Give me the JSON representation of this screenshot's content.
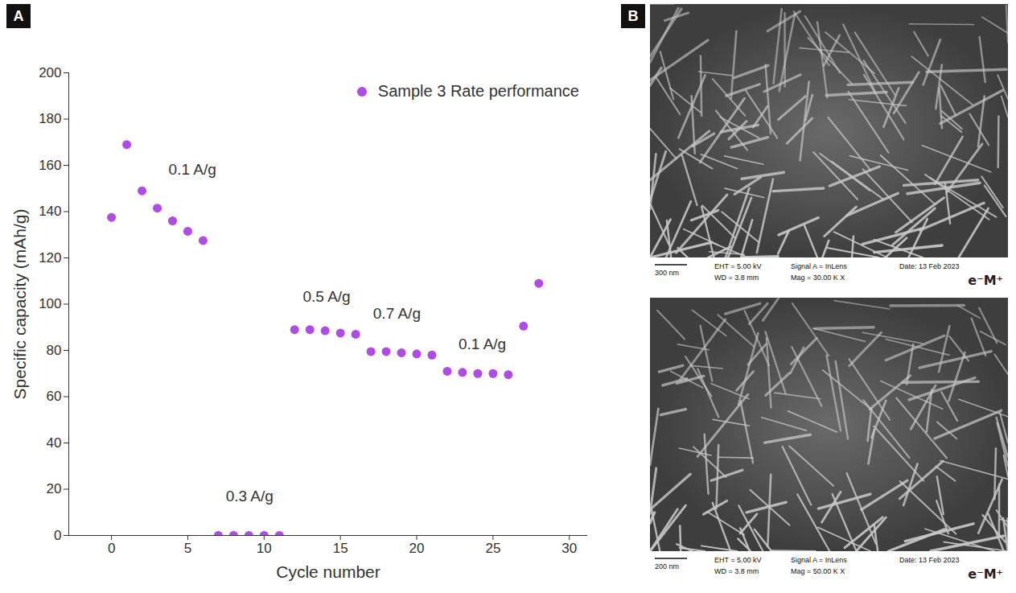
{
  "chart_data": {
    "type": "scatter",
    "panel_label": "A",
    "xlabel": "Cycle number",
    "ylabel": "Specific capacity (mAh/g)",
    "x": [
      0,
      1,
      2,
      3,
      4,
      5,
      6,
      7,
      8,
      9,
      10,
      11,
      12,
      13,
      14,
      15,
      16,
      17,
      18,
      19,
      20,
      21,
      22,
      23,
      24,
      25,
      26,
      27,
      28
    ],
    "series": [
      {
        "name": "Sample 3 Rate performance",
        "color": "#b04be6",
        "marker": "circle",
        "values": [
          137.5,
          169,
          149,
          141.5,
          136,
          131.5,
          127.5,
          0,
          0,
          0,
          0,
          0,
          89,
          89,
          88.5,
          87.5,
          87,
          79.5,
          79.5,
          79,
          78.5,
          78,
          71,
          70.5,
          70,
          70,
          69.5,
          90.5,
          109
        ]
      }
    ],
    "xlim": [
      -2.8,
      31.2
    ],
    "xticks": [
      0,
      5,
      10,
      15,
      20,
      25,
      30
    ],
    "ylim": [
      0,
      200
    ],
    "yticks": [
      0,
      20,
      40,
      60,
      80,
      100,
      120,
      140,
      160,
      180,
      200
    ],
    "legend": "upper right",
    "annotations": [
      {
        "text": "0.1 A/g",
        "x": 5.3,
        "y": 158
      },
      {
        "text": "0.3 A/g",
        "x": 9.05,
        "y": 17
      },
      {
        "text": "0.5 A/g",
        "x": 14.1,
        "y": 103
      },
      {
        "text": "0.7 A/g",
        "x": 18.7,
        "y": 96
      },
      {
        "text": "0.1 A/g",
        "x": 24.3,
        "y": 82.5
      }
    ]
  },
  "images": {
    "panel_label": "B",
    "items": [
      {
        "scale_bar": "300 nm",
        "info": [
          "EHT = 5.00 kV",
          "WD = 3.8 mm",
          "Signal A = InLens",
          "Mag = 30.00 K X",
          "Date: 13 Feb 2023"
        ],
        "logo": "e⁻M⁺"
      },
      {
        "scale_bar": "200 nm",
        "info": [
          "EHT = 5.00 kV",
          "WD = 3.8 mm",
          "Signal A = InLens",
          "Mag = 50.00 K X",
          "Date: 13 Feb 2023"
        ],
        "logo": "e⁻M⁺"
      }
    ]
  }
}
